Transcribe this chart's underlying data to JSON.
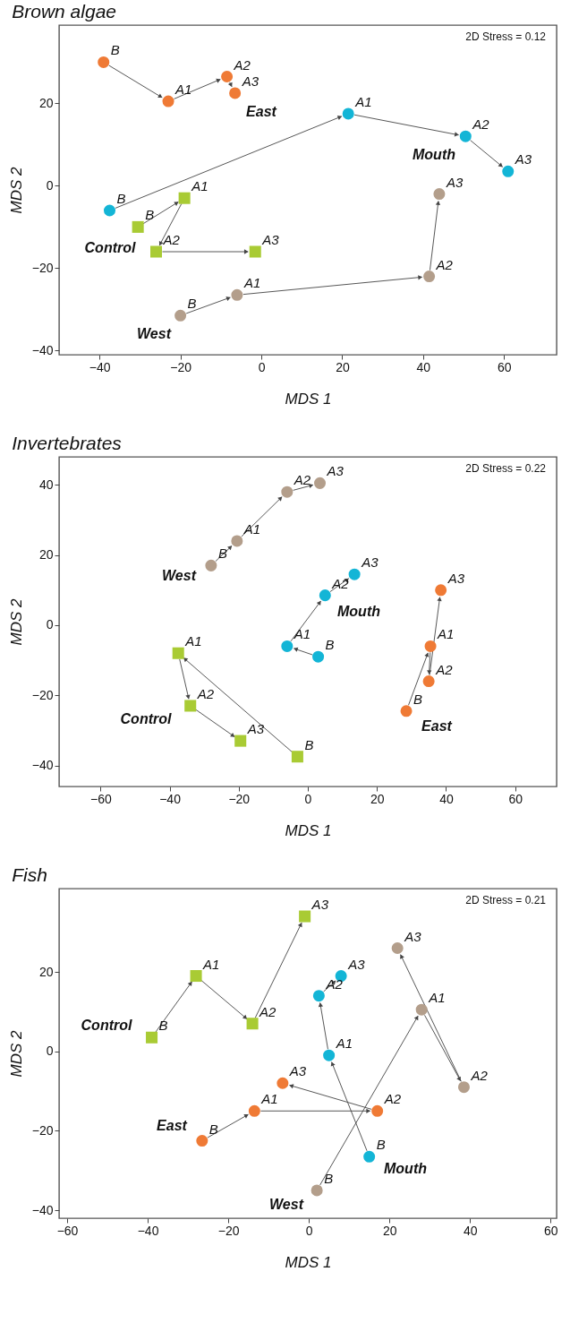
{
  "chart_data": [
    {
      "type": "scatter",
      "title": "Brown algae",
      "xlabel": "MDS 1",
      "ylabel": "MDS 2",
      "annotations": [
        "2D Stress = 0.12"
      ],
      "xlim": [
        -50,
        73
      ],
      "ylim": [
        -41,
        39
      ],
      "xticks": [
        -40,
        -20,
        0,
        20,
        40,
        60
      ],
      "yticks": [
        -40,
        -20,
        0,
        20
      ],
      "grid": false,
      "legend": false,
      "series": [
        {
          "name": "East",
          "color": "#ef7a35",
          "marker": "circle",
          "x": [
            -39,
            -23,
            -8.5,
            -6.5
          ],
          "values": [
            30,
            20.5,
            26.5,
            22.5
          ],
          "value_labels": [
            "B",
            "A1",
            "A2",
            "A3"
          ]
        },
        {
          "name": "Mouth",
          "color": "#13b5d6",
          "marker": "circle",
          "x": [
            -37.5,
            21.5,
            50.5,
            61
          ],
          "values": [
            -6,
            17.5,
            12,
            3.5
          ],
          "value_labels": [
            "B",
            "A1",
            "A2",
            "A3"
          ]
        },
        {
          "name": "Control",
          "color": "#a9cb34",
          "marker": "square",
          "x": [
            -30.5,
            -19,
            -26,
            -1.5
          ],
          "values": [
            -10,
            -3,
            -16,
            -16
          ],
          "value_labels": [
            "B",
            "A1",
            "A2",
            "A3"
          ]
        },
        {
          "name": "West",
          "color": "#b39e8b",
          "marker": "circle",
          "x": [
            -20,
            -6,
            41.5,
            44
          ],
          "values": [
            -31.5,
            -26.5,
            -22,
            -2
          ],
          "value_labels": [
            "B",
            "A1",
            "A2",
            "A3"
          ]
        }
      ]
    },
    {
      "type": "scatter",
      "title": "Invertebrates",
      "xlabel": "MDS 1",
      "ylabel": "MDS 2",
      "annotations": [
        "2D Stress = 0.22"
      ],
      "xlim": [
        -72,
        72
      ],
      "ylim": [
        -46,
        48
      ],
      "xticks": [
        -60,
        -40,
        -20,
        0,
        20,
        40,
        60
      ],
      "yticks": [
        -40,
        -20,
        0,
        20,
        40
      ],
      "grid": false,
      "legend": false,
      "series": [
        {
          "name": "West",
          "color": "#b39e8b",
          "marker": "circle",
          "x": [
            -28,
            -20.5,
            -6,
            3.5
          ],
          "values": [
            17,
            24,
            38,
            40.5
          ],
          "value_labels": [
            "B",
            "A1",
            "A2",
            "A3"
          ]
        },
        {
          "name": "Mouth",
          "color": "#13b5d6",
          "marker": "circle",
          "x": [
            3,
            -6,
            5,
            13.5
          ],
          "values": [
            -9,
            -6,
            8.5,
            14.5
          ],
          "value_labels": [
            "B",
            "A1",
            "A2",
            "A3"
          ]
        },
        {
          "name": "East",
          "color": "#ef7a35",
          "marker": "circle",
          "x": [
            28.5,
            35.5,
            35,
            38.5
          ],
          "values": [
            -24.5,
            -6,
            -16,
            10
          ],
          "value_labels": [
            "B",
            "A1",
            "A2",
            "A3"
          ]
        },
        {
          "name": "Control",
          "color": "#a9cb34",
          "marker": "square",
          "x": [
            -3,
            -37.5,
            -34,
            -19.5
          ],
          "values": [
            -37.5,
            -8,
            -23,
            -33
          ],
          "value_labels": [
            "B",
            "A1",
            "A2",
            "A3"
          ]
        }
      ]
    },
    {
      "type": "scatter",
      "title": "Fish",
      "xlabel": "MDS 1",
      "ylabel": "MDS 2",
      "annotations": [
        "2D Stress = 0.21"
      ],
      "xlim": [
        -62,
        61.5
      ],
      "ylim": [
        -42,
        41
      ],
      "xticks": [
        -60,
        -40,
        -20,
        0,
        20,
        40,
        60
      ],
      "yticks": [
        -40,
        -20,
        0,
        20
      ],
      "grid": false,
      "legend": false,
      "series": [
        {
          "name": "Control",
          "color": "#a9cb34",
          "marker": "square",
          "x": [
            -39,
            -28,
            -14,
            -1
          ],
          "values": [
            3.5,
            19,
            7,
            34
          ],
          "value_labels": [
            "B",
            "A1",
            "A2",
            "A3"
          ]
        },
        {
          "name": "Mouth",
          "color": "#13b5d6",
          "marker": "circle",
          "x": [
            15,
            5,
            2.5,
            8
          ],
          "values": [
            -26.5,
            -1,
            14,
            19
          ],
          "value_labels": [
            "B",
            "A1",
            "A2",
            "A3"
          ]
        },
        {
          "name": "West",
          "color": "#b39e8b",
          "marker": "circle",
          "x": [
            2,
            28,
            38.5,
            22
          ],
          "values": [
            -35,
            10.5,
            -9,
            26
          ],
          "value_labels": [
            "B",
            "A1",
            "A2",
            "A3"
          ]
        },
        {
          "name": "East",
          "color": "#ef7a35",
          "marker": "circle",
          "x": [
            -26.5,
            -13.5,
            17,
            -6.5
          ],
          "values": [
            -22.5,
            -15,
            -15,
            -8
          ],
          "value_labels": [
            "B",
            "A1",
            "A2",
            "A3"
          ]
        }
      ]
    }
  ]
}
